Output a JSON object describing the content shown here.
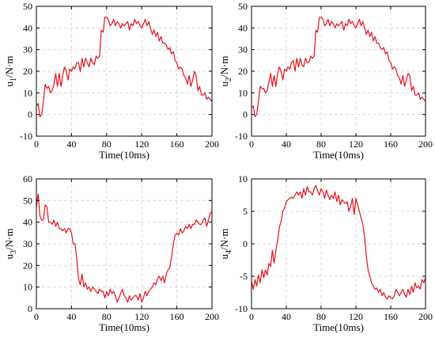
{
  "chart_data": [
    {
      "type": "line",
      "xlabel": "Time(10ms)",
      "ylabel": {
        "base": "u",
        "sub": "1",
        "unit": "/N·m"
      },
      "xlim": [
        0,
        200
      ],
      "ylim": [
        -10,
        50
      ],
      "xticks": [
        0,
        40,
        80,
        120,
        160,
        200
      ],
      "yticks": [
        -10,
        0,
        10,
        20,
        30,
        40,
        50
      ],
      "grid": true,
      "color": "#e8101a",
      "x": [
        0,
        2,
        4,
        6,
        8,
        10,
        12,
        14,
        16,
        18,
        20,
        22,
        24,
        26,
        28,
        30,
        32,
        34,
        36,
        38,
        40,
        42,
        44,
        46,
        48,
        50,
        52,
        54,
        56,
        58,
        60,
        62,
        64,
        66,
        68,
        70,
        72,
        74,
        76,
        78,
        80,
        82,
        84,
        86,
        88,
        90,
        92,
        94,
        96,
        98,
        100,
        102,
        104,
        106,
        108,
        110,
        112,
        114,
        116,
        118,
        120,
        122,
        124,
        126,
        128,
        130,
        132,
        134,
        136,
        138,
        140,
        142,
        144,
        146,
        148,
        150,
        152,
        154,
        156,
        158,
        160,
        162,
        164,
        166,
        168,
        170,
        172,
        174,
        176,
        178,
        180,
        182,
        184,
        186,
        188,
        190,
        192,
        194,
        196,
        198,
        200
      ],
      "y": [
        4,
        5,
        -1,
        0,
        6,
        14,
        12,
        13,
        10,
        11,
        14,
        19,
        13,
        19,
        13,
        18,
        22,
        20,
        16,
        21,
        20,
        22,
        21,
        24,
        24,
        20,
        26,
        22,
        26,
        24,
        22,
        26,
        24,
        23,
        27,
        26,
        27,
        39,
        38,
        45,
        45,
        44,
        41,
        42,
        44,
        41,
        43,
        42,
        40,
        42,
        41,
        42,
        43,
        39,
        42,
        41,
        44,
        42,
        43,
        41,
        40,
        42,
        44,
        41,
        43,
        40,
        37,
        39,
        36,
        38,
        34,
        36,
        33,
        33,
        32,
        30,
        31,
        28,
        29,
        25,
        24,
        21,
        22,
        21,
        18,
        17,
        14,
        18,
        13,
        16,
        20,
        18,
        11,
        13,
        9,
        9,
        10,
        7,
        8,
        7,
        6
      ]
    },
    {
      "type": "line",
      "xlabel": "Time(10ms)",
      "ylabel": {
        "base": "u",
        "sub": "2",
        "unit": "/N·m"
      },
      "xlim": [
        0,
        200
      ],
      "ylim": [
        -10,
        50
      ],
      "xticks": [
        0,
        40,
        80,
        120,
        160,
        200
      ],
      "yticks": [
        -10,
        0,
        10,
        20,
        30,
        40,
        50
      ],
      "grid": true,
      "color": "#e8101a",
      "x": [
        0,
        2,
        4,
        6,
        8,
        10,
        12,
        14,
        16,
        18,
        20,
        22,
        24,
        26,
        28,
        30,
        32,
        34,
        36,
        38,
        40,
        42,
        44,
        46,
        48,
        50,
        52,
        54,
        56,
        58,
        60,
        62,
        64,
        66,
        68,
        70,
        72,
        74,
        76,
        78,
        80,
        82,
        84,
        86,
        88,
        90,
        92,
        94,
        96,
        98,
        100,
        102,
        104,
        106,
        108,
        110,
        112,
        114,
        116,
        118,
        120,
        122,
        124,
        126,
        128,
        130,
        132,
        134,
        136,
        138,
        140,
        142,
        144,
        146,
        148,
        150,
        152,
        154,
        156,
        158,
        160,
        162,
        164,
        166,
        168,
        170,
        172,
        174,
        176,
        178,
        180,
        182,
        184,
        186,
        188,
        190,
        192,
        194,
        196,
        198,
        200
      ],
      "y": [
        3,
        4,
        -1,
        0,
        6,
        13,
        12,
        12,
        10,
        11,
        15,
        19,
        13,
        18,
        13,
        19,
        22,
        20,
        16,
        21,
        20,
        22,
        21,
        24,
        25,
        20,
        26,
        22,
        26,
        23,
        22,
        26,
        24,
        24,
        27,
        26,
        27,
        39,
        38,
        45,
        45,
        44,
        41,
        42,
        44,
        41,
        43,
        42,
        40,
        42,
        41,
        42,
        43,
        39,
        42,
        41,
        44,
        42,
        43,
        41,
        40,
        42,
        44,
        41,
        43,
        40,
        37,
        39,
        36,
        38,
        34,
        36,
        33,
        33,
        31,
        30,
        31,
        28,
        29,
        25,
        24,
        21,
        22,
        21,
        18,
        17,
        14,
        18,
        13,
        16,
        19,
        18,
        11,
        13,
        9,
        9,
        10,
        7,
        8,
        7,
        6
      ]
    },
    {
      "type": "line",
      "xlabel": "Time(10ms)",
      "ylabel": {
        "base": "u",
        "sub": "3",
        "unit": "/N·m"
      },
      "xlim": [
        0,
        200
      ],
      "ylim": [
        0,
        60
      ],
      "xticks": [
        0,
        40,
        80,
        120,
        160,
        200
      ],
      "yticks": [
        0,
        10,
        20,
        30,
        40,
        50,
        60
      ],
      "grid": true,
      "color": "#e8101a",
      "x": [
        0,
        2,
        4,
        6,
        8,
        10,
        12,
        14,
        16,
        18,
        20,
        22,
        24,
        26,
        28,
        30,
        32,
        34,
        36,
        38,
        40,
        42,
        44,
        46,
        48,
        50,
        52,
        54,
        56,
        58,
        60,
        62,
        64,
        66,
        68,
        70,
        72,
        74,
        76,
        78,
        80,
        82,
        84,
        86,
        88,
        90,
        92,
        94,
        96,
        98,
        100,
        102,
        104,
        106,
        108,
        110,
        112,
        114,
        116,
        118,
        120,
        122,
        124,
        126,
        128,
        130,
        132,
        134,
        136,
        138,
        140,
        142,
        144,
        146,
        148,
        150,
        152,
        154,
        156,
        158,
        160,
        162,
        164,
        166,
        168,
        170,
        172,
        174,
        176,
        178,
        180,
        182,
        184,
        186,
        188,
        190,
        192,
        194,
        196,
        198,
        200
      ],
      "y": [
        47,
        53,
        43,
        41,
        41,
        48,
        47,
        40,
        40,
        39,
        41,
        38,
        40,
        37,
        37,
        36,
        37,
        35,
        37,
        37,
        35,
        30,
        30,
        23,
        14,
        11,
        16,
        10,
        12,
        9,
        10,
        8,
        10,
        9,
        8,
        7,
        9,
        8,
        8,
        5,
        8,
        6,
        9,
        7,
        8,
        6,
        3,
        5,
        7,
        9,
        6,
        5,
        3,
        6,
        4,
        5,
        6,
        6,
        4,
        7,
        3,
        5,
        8,
        6,
        8,
        9,
        10,
        12,
        11,
        14,
        15,
        13,
        15,
        12,
        16,
        18,
        19,
        24,
        30,
        34,
        35,
        34,
        37,
        35,
        36,
        38,
        37,
        39,
        37,
        39,
        39,
        41,
        40,
        39,
        39,
        41,
        42,
        38,
        41,
        44,
        45
      ]
    },
    {
      "type": "line",
      "xlabel": "Time(10ms)",
      "ylabel": {
        "base": "u",
        "sub": "4",
        "unit": "/N·m"
      },
      "xlim": [
        0,
        200
      ],
      "ylim": [
        -10,
        10
      ],
      "xticks": [
        0,
        40,
        80,
        120,
        160,
        200
      ],
      "yticks": [
        -10,
        -5,
        0,
        5,
        10
      ],
      "grid": true,
      "color": "#e8101a",
      "x": [
        0,
        2,
        4,
        6,
        8,
        10,
        12,
        14,
        16,
        18,
        20,
        22,
        24,
        26,
        28,
        30,
        32,
        34,
        36,
        38,
        40,
        42,
        44,
        46,
        48,
        50,
        52,
        54,
        56,
        58,
        60,
        62,
        64,
        66,
        68,
        70,
        72,
        74,
        76,
        78,
        80,
        82,
        84,
        86,
        88,
        90,
        92,
        94,
        96,
        98,
        100,
        102,
        104,
        106,
        108,
        110,
        112,
        114,
        116,
        118,
        120,
        122,
        124,
        126,
        128,
        130,
        132,
        134,
        136,
        138,
        140,
        142,
        144,
        146,
        148,
        150,
        152,
        154,
        156,
        158,
        160,
        162,
        164,
        166,
        168,
        170,
        172,
        174,
        176,
        178,
        180,
        182,
        184,
        186,
        188,
        190,
        192,
        194,
        196,
        198,
        200
      ],
      "y": [
        -5.8,
        -7,
        -5.5,
        -6.5,
        -4.8,
        -6,
        -4,
        -5.2,
        -4,
        -4.8,
        -3,
        -3.5,
        -1,
        -3,
        -1,
        0.5,
        2.5,
        3.5,
        5,
        5.5,
        6.5,
        6.8,
        7,
        7.2,
        7,
        7.5,
        8,
        7.5,
        8,
        7,
        8.5,
        7.5,
        8.8,
        8,
        8,
        7.5,
        8.5,
        9,
        8.2,
        7.5,
        8.5,
        8,
        7,
        8.3,
        7.5,
        6.8,
        7.5,
        7,
        8,
        6.5,
        7.5,
        6,
        6.8,
        6.5,
        6.2,
        6.5,
        5,
        5.8,
        7,
        4.5,
        7,
        6,
        5,
        4,
        3,
        1,
        -2,
        -4,
        -5,
        -6,
        -6.5,
        -7,
        -6.8,
        -7.5,
        -7,
        -8,
        -7.5,
        -8.2,
        -8.5,
        -8,
        -8.3,
        -8.5,
        -8,
        -7,
        -7.5,
        -8,
        -7.5,
        -7,
        -7.8,
        -8.2,
        -7,
        -7.8,
        -6.5,
        -7.5,
        -6,
        -6.8,
        -6.5,
        -7,
        -5.5,
        -6,
        -5.2
      ]
    }
  ]
}
